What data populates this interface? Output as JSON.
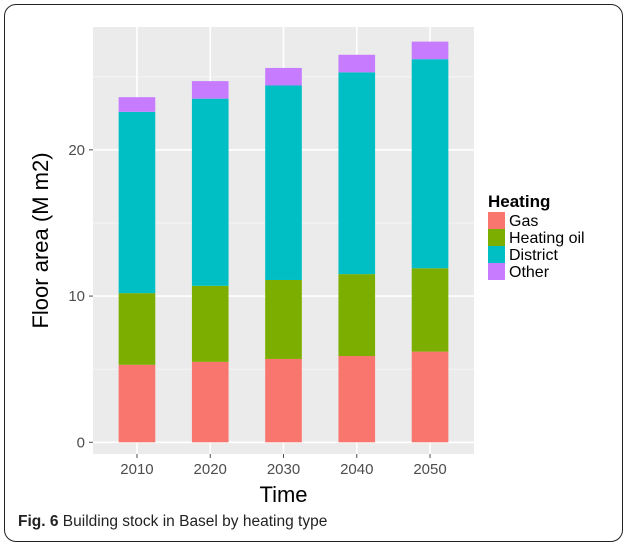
{
  "chart_data": {
    "type": "bar",
    "stacked": true,
    "title": "",
    "xlabel": "Time",
    "ylabel": "Floor area (M m2)",
    "categories": [
      "2010",
      "2020",
      "2030",
      "2040",
      "2050"
    ],
    "ylim": [
      -0.8,
      28.4
    ],
    "yticks": [
      0,
      10,
      20
    ],
    "grid": true,
    "legend": {
      "title": "Heating",
      "position": "right"
    },
    "series": [
      {
        "name": "Gas",
        "color": "#F8766D",
        "values": [
          5.3,
          5.5,
          5.7,
          5.9,
          6.2
        ]
      },
      {
        "name": "Heating oil",
        "color": "#7CAE00",
        "values": [
          4.9,
          5.2,
          5.4,
          5.6,
          5.7
        ]
      },
      {
        "name": "District",
        "color": "#00BFC4",
        "values": [
          12.4,
          12.8,
          13.3,
          13.8,
          14.3
        ]
      },
      {
        "name": "Other",
        "color": "#C77CFF",
        "values": [
          1.0,
          1.2,
          1.2,
          1.2,
          1.2
        ]
      }
    ]
  },
  "caption": {
    "label": "Fig. 6",
    "text": " Building stock in Basel by heating type"
  },
  "colors": {
    "panel_background": "#EBEBEB",
    "grid_major": "#FFFFFF",
    "grid_minor": "#F5F5F5"
  }
}
